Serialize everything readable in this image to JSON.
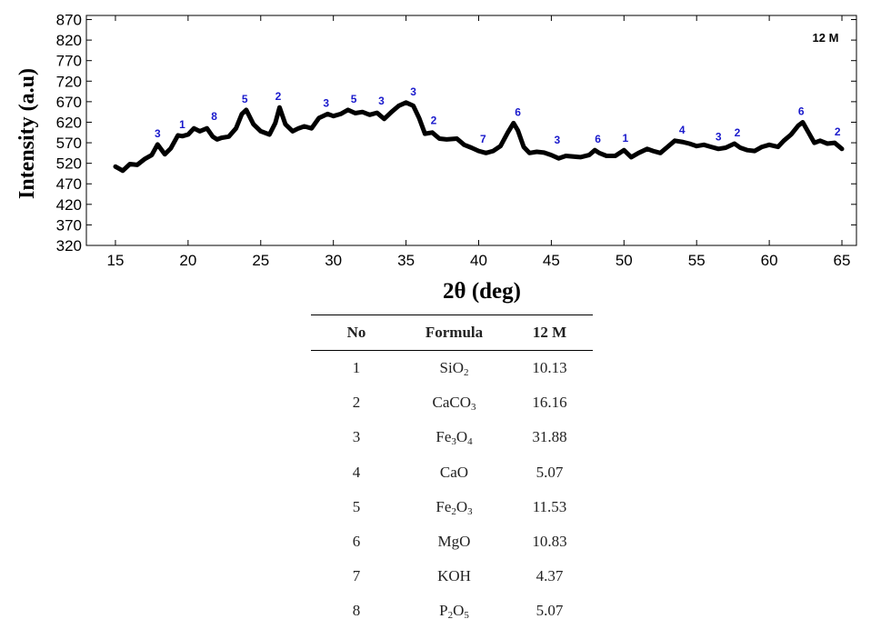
{
  "chart_data": {
    "type": "line",
    "xlabel": "2θ (deg)",
    "ylabel": "Intensity (a.u)",
    "corner_label": "12 M",
    "xlim": [
      13,
      66
    ],
    "ylim": [
      320,
      880
    ],
    "xticks": [
      15,
      20,
      25,
      30,
      35,
      40,
      45,
      50,
      55,
      60,
      65
    ],
    "yticks": [
      320,
      370,
      420,
      470,
      520,
      570,
      620,
      670,
      720,
      770,
      820,
      870
    ],
    "series": [
      {
        "x": [
          15.0,
          15.5,
          16.0,
          16.5,
          17.0,
          17.5,
          17.9,
          18.4,
          18.8,
          19.3,
          19.6,
          20.0,
          20.4,
          20.8,
          21.3,
          21.7,
          22.0,
          22.3,
          22.8,
          23.3,
          23.7,
          24.0,
          24.5,
          25.0,
          25.6,
          26.0,
          26.3,
          26.7,
          27.2,
          27.6,
          28.0,
          28.5,
          29.0,
          29.6,
          30.0,
          30.5,
          31.0,
          31.5,
          32.0,
          32.5,
          33.0,
          33.5,
          34.0,
          34.5,
          35.0,
          35.5,
          35.9,
          36.3,
          36.8,
          37.3,
          37.8,
          38.5,
          39.0,
          39.5,
          40.0,
          40.5,
          41.0,
          41.5,
          42.0,
          42.4,
          42.7,
          43.1,
          43.5,
          44.0,
          44.5,
          45.0,
          45.5,
          46.0,
          47.0,
          47.6,
          48.0,
          48.3,
          48.8,
          49.4,
          50.0,
          50.5,
          51.0,
          51.6,
          52.0,
          52.5,
          53.0,
          53.5,
          54.0,
          54.5,
          55.0,
          55.5,
          56.0,
          56.5,
          57.0,
          57.6,
          58.0,
          58.5,
          59.0,
          59.5,
          60.0,
          60.6,
          61.0,
          61.5,
          62.0,
          62.3,
          62.7,
          63.1,
          63.5,
          64.0,
          64.5,
          65.0
        ],
        "y": [
          512,
          502,
          518,
          516,
          530,
          540,
          566,
          542,
          556,
          588,
          586,
          590,
          605,
          598,
          605,
          585,
          578,
          582,
          585,
          605,
          640,
          650,
          615,
          598,
          590,
          618,
          656,
          615,
          598,
          605,
          610,
          605,
          630,
          640,
          635,
          640,
          650,
          642,
          645,
          638,
          643,
          628,
          645,
          660,
          668,
          660,
          630,
          592,
          595,
          580,
          578,
          580,
          565,
          558,
          550,
          545,
          550,
          562,
          595,
          618,
          600,
          560,
          545,
          548,
          546,
          540,
          532,
          538,
          535,
          540,
          552,
          545,
          538,
          538,
          552,
          535,
          545,
          555,
          550,
          545,
          560,
          575,
          572,
          568,
          562,
          565,
          560,
          555,
          558,
          568,
          558,
          552,
          550,
          560,
          565,
          560,
          575,
          590,
          612,
          620,
          595,
          570,
          575,
          568,
          570,
          555
        ]
      }
    ],
    "annotations": [
      {
        "x": 17.9,
        "y": 566,
        "text": "3"
      },
      {
        "x": 19.6,
        "y": 588,
        "text": "1"
      },
      {
        "x": 21.8,
        "y": 608,
        "text": "8"
      },
      {
        "x": 23.9,
        "y": 650,
        "text": "5"
      },
      {
        "x": 26.2,
        "y": 656,
        "text": "2"
      },
      {
        "x": 29.5,
        "y": 640,
        "text": "3"
      },
      {
        "x": 31.4,
        "y": 650,
        "text": "5"
      },
      {
        "x": 33.3,
        "y": 645,
        "text": "3"
      },
      {
        "x": 35.5,
        "y": 668,
        "text": "3"
      },
      {
        "x": 36.9,
        "y": 598,
        "text": "2"
      },
      {
        "x": 40.3,
        "y": 552,
        "text": "7"
      },
      {
        "x": 42.7,
        "y": 618,
        "text": "6"
      },
      {
        "x": 45.4,
        "y": 550,
        "text": "3"
      },
      {
        "x": 48.2,
        "y": 552,
        "text": "6"
      },
      {
        "x": 50.1,
        "y": 555,
        "text": "1"
      },
      {
        "x": 54.0,
        "y": 575,
        "text": "4"
      },
      {
        "x": 56.5,
        "y": 558,
        "text": "3"
      },
      {
        "x": 57.8,
        "y": 568,
        "text": "2"
      },
      {
        "x": 62.2,
        "y": 620,
        "text": "6"
      },
      {
        "x": 64.7,
        "y": 570,
        "text": "2"
      }
    ]
  },
  "table": {
    "headers": [
      "No",
      "Formula",
      "12 M"
    ],
    "rows": [
      {
        "no": "1",
        "formula": [
          "Si",
          "O",
          "2"
        ],
        "value": "10.13"
      },
      {
        "no": "2",
        "formula": [
          "CaC",
          "O",
          "3"
        ],
        "value": "16.16"
      },
      {
        "no": "3",
        "formula": [
          "Fe",
          "3",
          "O",
          "4"
        ],
        "value": "31.88"
      },
      {
        "no": "4",
        "formula": [
          "CaO"
        ],
        "value": "5.07"
      },
      {
        "no": "5",
        "formula": [
          "Fe",
          "2",
          "O",
          "3"
        ],
        "value": "11.53"
      },
      {
        "no": "6",
        "formula": [
          "MgO"
        ],
        "value": "10.83"
      },
      {
        "no": "7",
        "formula": [
          "KOH"
        ],
        "value": "4.37"
      },
      {
        "no": "8",
        "formula": [
          "P",
          "2",
          "O",
          "5"
        ],
        "value": "5.07"
      }
    ]
  }
}
